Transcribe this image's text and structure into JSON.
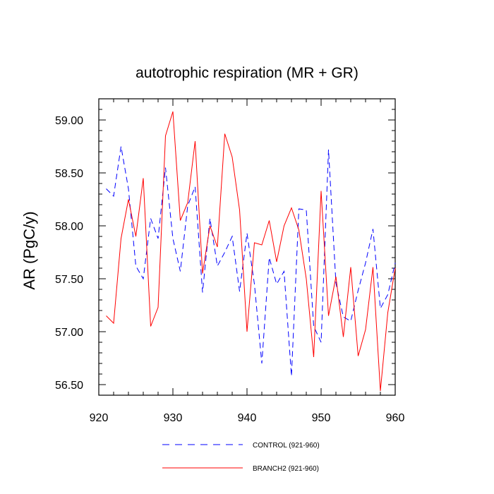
{
  "chart_data": {
    "type": "line",
    "title": "autotrophic respiration (MR + GR)",
    "xlabel": "",
    "ylabel": "AR  (PgC/y)",
    "xlim": [
      921,
      960
    ],
    "ylim": [
      56.4,
      59.2
    ],
    "xticks": [
      920,
      930,
      940,
      950,
      960
    ],
    "yticks": [
      56.5,
      57.0,
      57.5,
      58.0,
      58.5,
      59.0
    ],
    "xtick_labels": [
      "920",
      "930",
      "940",
      "950",
      "960"
    ],
    "ytick_labels": [
      "56.50",
      "57.00",
      "57.50",
      "58.00",
      "58.50",
      "59.00"
    ],
    "legend_position": "bottom",
    "x": [
      921,
      922,
      923,
      924,
      925,
      926,
      927,
      928,
      929,
      930,
      931,
      932,
      933,
      934,
      935,
      936,
      937,
      938,
      939,
      940,
      941,
      942,
      943,
      944,
      945,
      946,
      947,
      948,
      949,
      950,
      951,
      952,
      953,
      954,
      955,
      956,
      957,
      958,
      959,
      960
    ],
    "series": [
      {
        "name": "CONTROL (921-960)",
        "color": "#0000ff",
        "dash": "dashed",
        "values": [
          58.35,
          58.28,
          58.75,
          58.35,
          57.62,
          57.5,
          58.07,
          57.88,
          58.55,
          57.88,
          57.57,
          58.19,
          58.37,
          57.37,
          58.07,
          57.62,
          57.75,
          57.9,
          57.38,
          57.93,
          57.45,
          56.7,
          57.7,
          57.45,
          57.57,
          56.58,
          58.16,
          58.15,
          57.05,
          56.9,
          58.72,
          57.46,
          57.14,
          57.1,
          57.39,
          57.65,
          57.97,
          57.22,
          57.35,
          57.65
        ]
      },
      {
        "name": "BRANCH2 (921-960)",
        "color": "#ff0000",
        "dash": "solid",
        "values": [
          57.15,
          57.08,
          57.88,
          58.25,
          57.9,
          58.45,
          57.05,
          57.23,
          58.85,
          59.08,
          58.05,
          58.22,
          58.8,
          57.55,
          58.0,
          57.8,
          58.87,
          58.65,
          58.15,
          57.0,
          57.84,
          57.82,
          58.05,
          57.66,
          58.0,
          58.17,
          57.96,
          57.5,
          56.76,
          58.33,
          57.15,
          57.52,
          56.95,
          57.61,
          56.77,
          57.02,
          57.61,
          56.44,
          57.18,
          57.6
        ]
      }
    ]
  }
}
